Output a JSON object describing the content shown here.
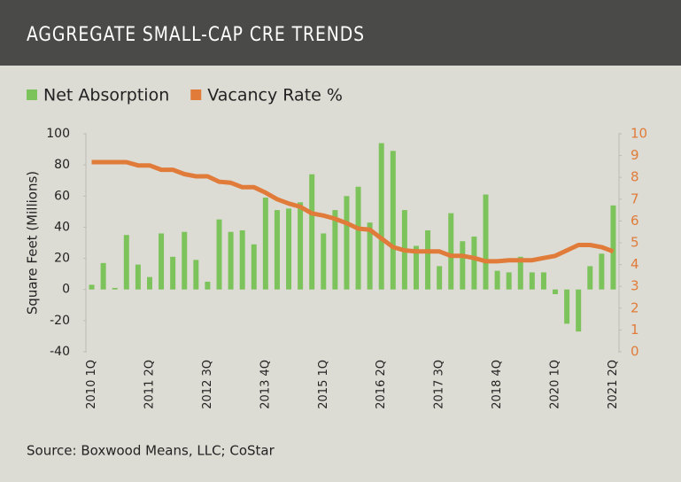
{
  "chart_data": {
    "type": "bar_line",
    "title": "AGGREGATE SMALL-CAP CRE TRENDS",
    "y_label": "Square Feet (Millions)",
    "source": "Source: Boxwood Means, LLC; CoStar",
    "categories": [
      "2010 1Q",
      null,
      null,
      null,
      null,
      "2011 2Q",
      null,
      null,
      null,
      null,
      "2012 3Q",
      null,
      null,
      null,
      null,
      "2013 4Q",
      null,
      null,
      null,
      null,
      "2015 1Q",
      null,
      null,
      null,
      null,
      "2016 2Q",
      null,
      null,
      null,
      null,
      "2017 3Q",
      null,
      null,
      null,
      null,
      "2018 4Q",
      null,
      null,
      null,
      null,
      "2020 1Q",
      null,
      null,
      null,
      null,
      "2021 2Q"
    ],
    "series": [
      {
        "name": "Net Absorption",
        "type": "bar",
        "color": "#7dc35b",
        "values": [
          3,
          17,
          1,
          35,
          16,
          8,
          36,
          21,
          37,
          19,
          5,
          45,
          37,
          38,
          29,
          59,
          51,
          52,
          56,
          74,
          36,
          51,
          60,
          66,
          43,
          94,
          89,
          51,
          28,
          38,
          15,
          49,
          31,
          34,
          61,
          12,
          11,
          21,
          11,
          11,
          -3,
          -22,
          -27,
          15,
          23,
          54
        ]
      },
      {
        "name": "Vacancy Rate %",
        "type": "line",
        "axis": "y2",
        "color": "#e07b39",
        "values": [
          8.7,
          8.7,
          8.7,
          8.7,
          8.55,
          8.55,
          8.35,
          8.35,
          8.15,
          8.05,
          8.05,
          7.8,
          7.75,
          7.55,
          7.55,
          7.3,
          7.0,
          6.8,
          6.65,
          6.35,
          6.25,
          6.1,
          5.9,
          5.65,
          5.6,
          5.2,
          4.8,
          4.65,
          4.6,
          4.6,
          4.6,
          4.4,
          4.4,
          4.3,
          4.15,
          4.15,
          4.2,
          4.2,
          4.2,
          4.3,
          4.4,
          4.65,
          4.9,
          4.9,
          4.8,
          4.6
        ]
      }
    ],
    "ylim": [
      -40,
      100
    ],
    "yticks": [
      -40,
      -20,
      0,
      20,
      40,
      60,
      80,
      100
    ],
    "y2lim": [
      0,
      10
    ],
    "y2ticks": [
      0,
      1,
      2,
      3,
      4,
      5,
      6,
      7,
      8,
      9,
      10
    ],
    "legend": "top"
  }
}
